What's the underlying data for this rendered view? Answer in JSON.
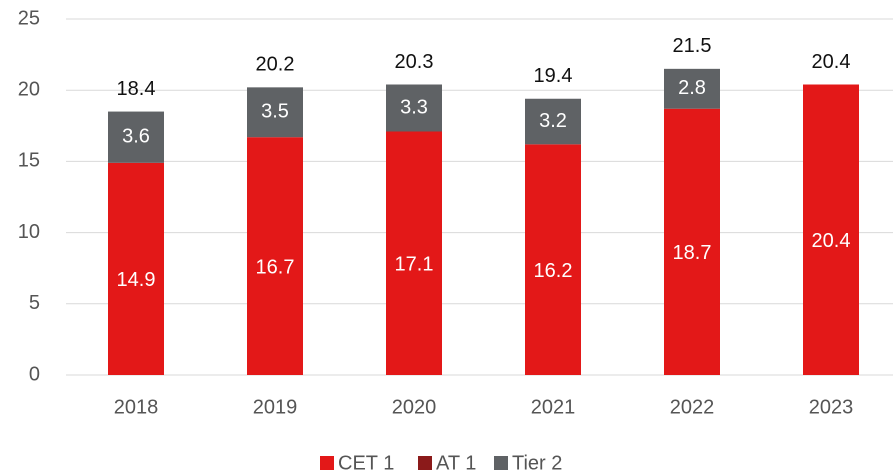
{
  "chart_data": {
    "type": "stacked_bar",
    "categories": [
      "2018",
      "2019",
      "2020",
      "2021",
      "2022",
      "2023"
    ],
    "series": [
      {
        "name": "CET 1",
        "color": "#e31818",
        "values": [
          14.9,
          16.7,
          17.1,
          16.2,
          18.7,
          20.4
        ]
      },
      {
        "name": "AT 1",
        "color": "#8b1a1a",
        "values": [
          null,
          null,
          null,
          null,
          null,
          null
        ]
      },
      {
        "name": "Tier 2",
        "color": "#5f6265",
        "values": [
          3.6,
          3.5,
          3.3,
          3.2,
          2.8,
          null
        ]
      }
    ],
    "totals": [
      18.4,
      20.2,
      20.3,
      19.4,
      21.5,
      20.4
    ],
    "ylim": [
      0,
      25
    ],
    "yticks": [
      0,
      5,
      10,
      15,
      20,
      25
    ],
    "grid": true,
    "legend": "bottom"
  }
}
